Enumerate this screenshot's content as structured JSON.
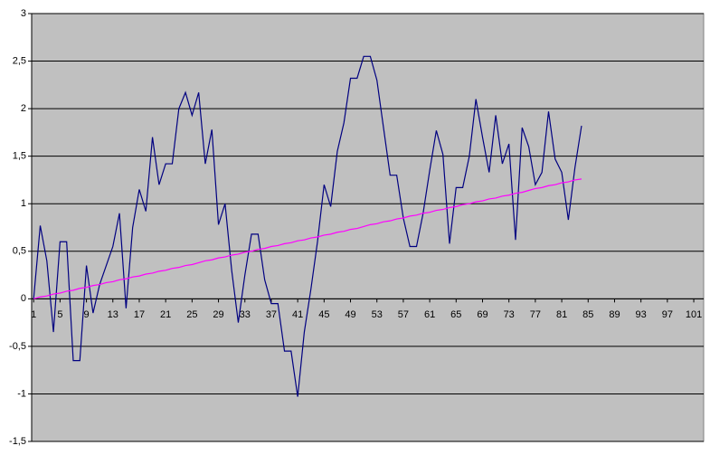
{
  "chart_data": {
    "type": "line",
    "x": [
      1,
      2,
      3,
      4,
      5,
      6,
      7,
      8,
      9,
      10,
      11,
      12,
      13,
      14,
      15,
      16,
      17,
      18,
      19,
      20,
      21,
      22,
      23,
      24,
      25,
      26,
      27,
      28,
      29,
      30,
      31,
      32,
      33,
      34,
      35,
      36,
      37,
      38,
      39,
      40,
      41,
      42,
      43,
      44,
      45,
      46,
      47,
      48,
      49,
      50,
      51,
      52,
      53,
      54,
      55,
      56,
      57,
      58,
      59,
      60,
      61,
      62,
      63,
      64,
      65,
      66,
      67,
      68,
      69,
      70,
      71,
      72,
      73,
      74,
      75,
      76,
      77,
      78,
      79,
      80,
      81,
      82,
      83,
      84
    ],
    "series": [
      {
        "color": "#000080",
        "values": [
          0,
          0.77,
          0.4,
          -0.35,
          0.6,
          0.6,
          -0.65,
          -0.65,
          0.35,
          -0.15,
          0.15,
          0.35,
          0.55,
          0.9,
          -0.1,
          0.75,
          1.15,
          0.92,
          1.7,
          1.2,
          1.42,
          1.42,
          2.0,
          2.17,
          1.93,
          2.17,
          1.42,
          1.78,
          0.78,
          1.0,
          0.3,
          -0.25,
          0.25,
          0.68,
          0.68,
          0.2,
          -0.05,
          -0.05,
          -0.55,
          -0.55,
          -1.03,
          -0.35,
          0.1,
          0.6,
          1.2,
          0.97,
          1.55,
          1.85,
          2.32,
          2.32,
          2.55,
          2.55,
          2.3,
          1.8,
          1.3,
          1.3,
          0.85,
          0.55,
          0.55,
          0.9,
          1.35,
          1.77,
          1.52,
          0.58,
          1.17,
          1.17,
          1.5,
          2.1,
          1.7,
          1.33,
          1.93,
          1.42,
          1.63,
          0.62,
          1.8,
          1.6,
          1.2,
          1.33,
          1.97,
          1.47,
          1.33,
          0.83,
          1.38,
          1.82
        ]
      },
      {
        "color": "#ff00ff",
        "values": [
          0,
          0.02,
          0.03,
          0.05,
          0.06,
          0.08,
          0.09,
          0.11,
          0.12,
          0.14,
          0.15,
          0.17,
          0.18,
          0.2,
          0.21,
          0.23,
          0.24,
          0.26,
          0.27,
          0.29,
          0.3,
          0.32,
          0.33,
          0.35,
          0.36,
          0.38,
          0.4,
          0.41,
          0.43,
          0.44,
          0.46,
          0.47,
          0.49,
          0.5,
          0.52,
          0.53,
          0.55,
          0.56,
          0.58,
          0.59,
          0.61,
          0.62,
          0.64,
          0.65,
          0.67,
          0.68,
          0.7,
          0.71,
          0.73,
          0.74,
          0.76,
          0.78,
          0.79,
          0.81,
          0.82,
          0.84,
          0.85,
          0.87,
          0.88,
          0.9,
          0.91,
          0.93,
          0.94,
          0.96,
          0.97,
          0.99,
          1.0,
          1.02,
          1.03,
          1.05,
          1.06,
          1.08,
          1.09,
          1.11,
          1.12,
          1.14,
          1.16,
          1.17,
          1.19,
          1.2,
          1.22,
          1.23,
          1.25,
          1.26
        ]
      }
    ],
    "xlim": [
      0.7,
      102.5
    ],
    "xticks": [
      1,
      5,
      9,
      13,
      17,
      21,
      25,
      29,
      33,
      37,
      41,
      45,
      49,
      53,
      57,
      61,
      65,
      69,
      73,
      77,
      81,
      85,
      89,
      93,
      97,
      101
    ],
    "ylim": [
      -1.5,
      3
    ],
    "yticks": [
      {
        "value": -1.5,
        "label": "-1,5"
      },
      -1,
      {
        "value": -0.5,
        "label": "-0,5"
      },
      0,
      {
        "value": 0.5,
        "label": "0,5"
      },
      1,
      {
        "value": 1.5,
        "label": "1,5"
      },
      2,
      {
        "value": 2.5,
        "label": "2,5"
      },
      3
    ],
    "grid": true
  }
}
